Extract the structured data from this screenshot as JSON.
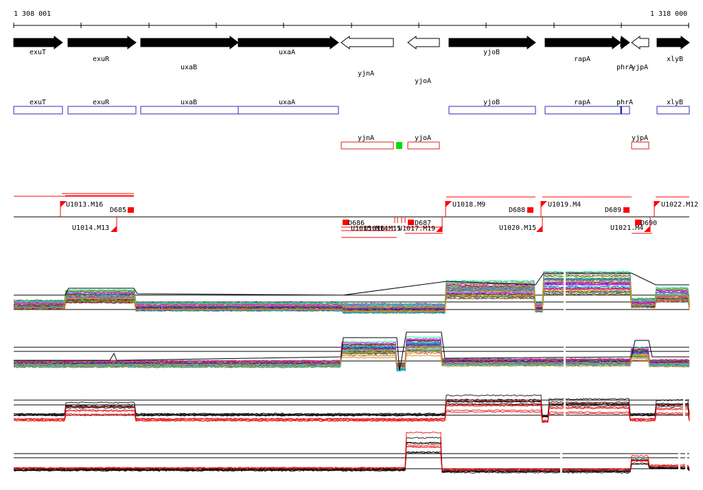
{
  "coords": {
    "start": "1 308 001",
    "end": "1 318 000"
  },
  "genes_arrows": [
    {
      "name": "exuT",
      "strand": "+",
      "fill": "black"
    },
    {
      "name": "exuR",
      "strand": "+",
      "fill": "black"
    },
    {
      "name": "uxaB",
      "strand": "+",
      "fill": "black"
    },
    {
      "name": "uxaA",
      "strand": "+",
      "fill": "black"
    },
    {
      "name": "yjnA",
      "strand": "-",
      "fill": "white"
    },
    {
      "name": "yjoA",
      "strand": "-",
      "fill": "white"
    },
    {
      "name": "yjoB",
      "strand": "+",
      "fill": "black"
    },
    {
      "name": "rapA",
      "strand": "+",
      "fill": "black"
    },
    {
      "name": "phrA",
      "strand": "+",
      "fill": "black"
    },
    {
      "name": "yjpA",
      "strand": "-",
      "fill": "white"
    },
    {
      "name": "xlyB",
      "strand": "+",
      "fill": "black"
    }
  ],
  "operon_blue": [
    "exuT",
    "exuR",
    "uxaB",
    "uxaA",
    "yjoB",
    "rapA",
    "phrA",
    "xlyB"
  ],
  "operon_red": [
    "yjnA",
    "yjoA",
    "yjpA"
  ],
  "upper_labels": [
    "U1013.M16",
    "D685",
    "U1018.M9",
    "D688",
    "U1019.M4",
    "D689",
    "U1022.M12"
  ],
  "lower_labels": [
    "U1014.M13",
    "D686",
    "U1015.M14",
    "U1016.M15",
    "U1017.M19",
    "D687",
    "U1020.M15",
    "U1021.M4",
    "D690"
  ],
  "colors": {
    "arrow": "#000000",
    "operon_blue": "#2a2ab8",
    "operon_red": "#d42020",
    "marker": "#ff0000",
    "green_box": "#00dd00",
    "trace_black": "#000000",
    "trace_red": "#e01010"
  }
}
